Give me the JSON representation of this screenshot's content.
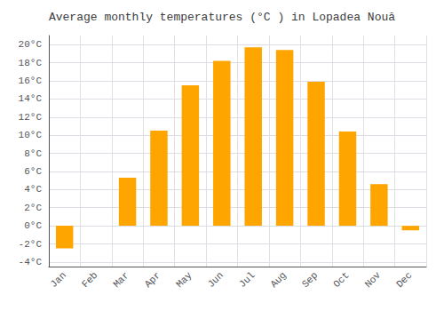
{
  "chart_data": {
    "type": "bar",
    "title": "Average monthly temperatures (°C ) in Lopadea Nouă",
    "categories": [
      "Jan",
      "Feb",
      "Mar",
      "Apr",
      "May",
      "Jun",
      "Jul",
      "Aug",
      "Sep",
      "Oct",
      "Nov",
      "Dec"
    ],
    "values": [
      -2.5,
      0.0,
      5.3,
      10.5,
      15.5,
      18.2,
      19.7,
      19.4,
      15.9,
      10.4,
      4.6,
      -0.5
    ],
    "color": "#FFA500",
    "ylim": [
      -4.5,
      21
    ],
    "yticks": [
      {
        "value": -4,
        "label": "-4°C"
      },
      {
        "value": -2,
        "label": "-2°C"
      },
      {
        "value": 0,
        "label": "0°C"
      },
      {
        "value": 2,
        "label": "2°C"
      },
      {
        "value": 4,
        "label": "4°C"
      },
      {
        "value": 6,
        "label": "6°C"
      },
      {
        "value": 8,
        "label": "8°C"
      },
      {
        "value": 10,
        "label": "10°C"
      },
      {
        "value": 12,
        "label": "12°C"
      },
      {
        "value": 14,
        "label": "14°C"
      },
      {
        "value": 16,
        "label": "16°C"
      },
      {
        "value": 18,
        "label": "18°C"
      },
      {
        "value": 20,
        "label": "20°C"
      }
    ],
    "grid": true
  }
}
